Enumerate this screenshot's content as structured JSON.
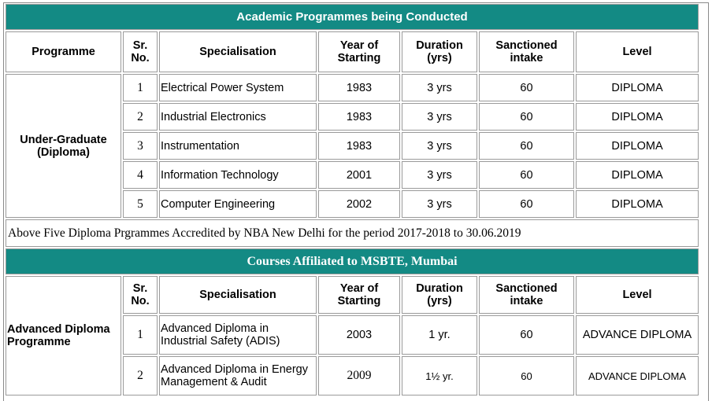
{
  "section1": {
    "title": "Academic Programmes being Conducted",
    "headers": {
      "programme": "Programme",
      "sr_no": "Sr. No.",
      "specialisation": "Specialisation",
      "year": "Year of Starting",
      "duration": "Duration (yrs)",
      "intake": "Sanctioned intake",
      "level": "Level"
    },
    "programme_label": "Under-Graduate (Diploma)",
    "rows": [
      {
        "sr": "1",
        "spec": "Electrical Power System",
        "year": "1983",
        "duration": "3 yrs",
        "intake": "60",
        "level": "DIPLOMA"
      },
      {
        "sr": "2",
        "spec": "Industrial Electronics",
        "year": "1983",
        "duration": "3 yrs",
        "intake": "60",
        "level": "DIPLOMA"
      },
      {
        "sr": "3",
        "spec": "Instrumentation",
        "year": "1983",
        "duration": "3 yrs",
        "intake": "60",
        "level": "DIPLOMA"
      },
      {
        "sr": "4",
        "spec": "Information Technology",
        "year": "2001",
        "duration": "3 yrs",
        "intake": "60",
        "level": "DIPLOMA"
      },
      {
        "sr": "5",
        "spec": "Computer Engineering",
        "year": "2002",
        "duration": "3 yrs",
        "intake": "60",
        "level": "DIPLOMA"
      }
    ],
    "note": "Above Five Diploma Prgrammes Accredited by NBA New Delhi for the period 2017-2018 to 30.06.2019"
  },
  "section2": {
    "title": "Courses Affiliated to MSBTE, Mumbai",
    "headers": {
      "sr_no": "Sr. No.",
      "specialisation": "Specialisation",
      "year": "Year of Starting",
      "duration": "Duration (yrs)",
      "intake": "Sanctioned intake",
      "level": "Level"
    },
    "programme_label": "Advanced Diploma Programme",
    "rows": [
      {
        "sr": "1",
        "spec": "Advanced Diploma in Industrial Safety (ADIS)",
        "year": "2003",
        "duration": "1 yr.",
        "intake": "60",
        "level": "ADVANCE DIPLOMA"
      },
      {
        "sr": "2",
        "spec": "Advanced Diploma in Energy Management & Audit",
        "year": "2009",
        "duration": "1½ yr.",
        "intake": "60",
        "level": "ADVANCE DIPLOMA"
      }
    ]
  },
  "colors": {
    "header_bar": "#138a84",
    "header_text": "#ffffff",
    "border": "#9a9a9a"
  }
}
